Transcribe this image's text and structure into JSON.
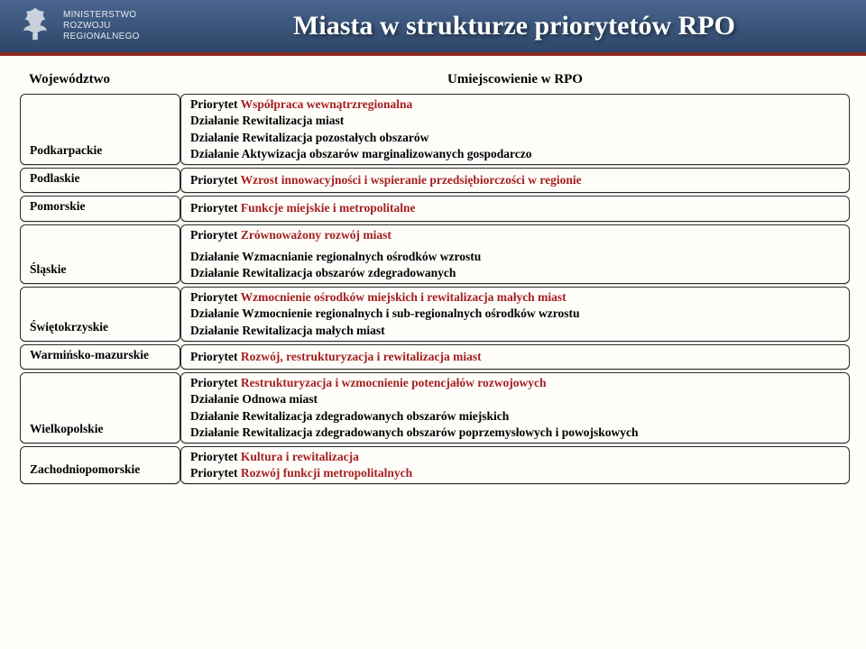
{
  "header": {
    "ministry_line1": "MINISTERSTWO",
    "ministry_line2": "ROZWOJU",
    "ministry_line3": "REGIONALNEGO",
    "title": "Miasta w strukturze priorytetów RPO"
  },
  "table": {
    "col1_header": "Województwo",
    "col2_header": "Umiejscowienie w RPO",
    "rows": [
      {
        "region": "Podkarpackie",
        "segments": [
          {
            "t": "Priorytet ",
            "cls": "p-label"
          },
          {
            "t": "Współpraca wewnątrzregionalna",
            "cls": "red"
          },
          {
            "br": true
          },
          {
            "t": "Działanie Rewitalizacja miast",
            "cls": "p-label"
          },
          {
            "br": true
          },
          {
            "t": "Działanie Rewitalizacja pozostałych obszarów",
            "cls": "p-label"
          },
          {
            "br": true
          },
          {
            "t": "Działanie Aktywizacja obszarów marginalizowanych gospodarczo",
            "cls": "p-label"
          }
        ]
      },
      {
        "region": "Podlaskie",
        "segments": [
          {
            "t": "Priorytet ",
            "cls": "p-label"
          },
          {
            "t": "Wzrost innowacyjności i wspieranie przedsiębiorczości w regionie",
            "cls": "red"
          }
        ]
      },
      {
        "region": "Pomorskie",
        "segments": [
          {
            "t": "Priorytet ",
            "cls": "p-label"
          },
          {
            "t": "Funkcje miejskie i metropolitalne",
            "cls": "red"
          }
        ]
      },
      {
        "region": "Śląskie",
        "segments": [
          {
            "t": "Priorytet ",
            "cls": "p-label"
          },
          {
            "t": "Zrównoważony rozwój miast",
            "cls": "red"
          },
          {
            "br": true
          },
          {
            "gap": true
          },
          {
            "t": "Działanie Wzmacnianie regionalnych ośrodków wzrostu",
            "cls": "p-label"
          },
          {
            "br": true
          },
          {
            "t": "Działanie Rewitalizacja obszarów zdegradowanych",
            "cls": "p-label"
          }
        ]
      },
      {
        "region": "Świętokrzyskie",
        "segments": [
          {
            "t": "Priorytet ",
            "cls": "p-label"
          },
          {
            "t": "Wzmocnienie ośrodków miejskich i rewitalizacja małych miast",
            "cls": "red"
          },
          {
            "br": true
          },
          {
            "t": "Działanie Wzmocnienie regionalnych i sub-regionalnych ośrodków wzrostu",
            "cls": "p-label"
          },
          {
            "br": true
          },
          {
            "t": "Działanie Rewitalizacja małych miast",
            "cls": "p-label"
          }
        ]
      },
      {
        "region": "Warmińsko-mazurskie",
        "segments": [
          {
            "t": "Priorytet ",
            "cls": "p-label"
          },
          {
            "t": "Rozwój, restrukturyzacja i rewitalizacja miast",
            "cls": "red"
          }
        ]
      },
      {
        "region": "Wielkopolskie",
        "segments": [
          {
            "t": "Priorytet  ",
            "cls": "p-label"
          },
          {
            "t": "Restrukturyzacja i wzmocnienie potencjałów rozwojowych",
            "cls": "red"
          },
          {
            "br": true
          },
          {
            "t": "Działanie Odnowa miast",
            "cls": "p-label"
          },
          {
            "br": true
          },
          {
            "t": "Działanie Rewitalizacja zdegradowanych obszarów miejskich",
            "cls": "p-label"
          },
          {
            "br": true
          },
          {
            "t": "Działanie Rewitalizacja zdegradowanych obszarów poprzemysłowych i powojskowych",
            "cls": "p-label"
          }
        ]
      },
      {
        "region": "Zachodniopomorskie",
        "segments": [
          {
            "t": "Priorytet  ",
            "cls": "p-label"
          },
          {
            "t": "Kultura i rewitalizacja",
            "cls": "red"
          },
          {
            "br": true
          },
          {
            "t": "Priorytet ",
            "cls": "p-label"
          },
          {
            "t": "Rozwój funkcji metropolitalnych",
            "cls": "red"
          }
        ]
      }
    ]
  },
  "colors": {
    "header_grad_top": "#4a668f",
    "header_grad_bottom": "#2d4668",
    "accent_red": "#8c2a22",
    "text_red": "#a52020",
    "page_bg": "#fefdf9",
    "cell_border": "#2b2b2b"
  }
}
